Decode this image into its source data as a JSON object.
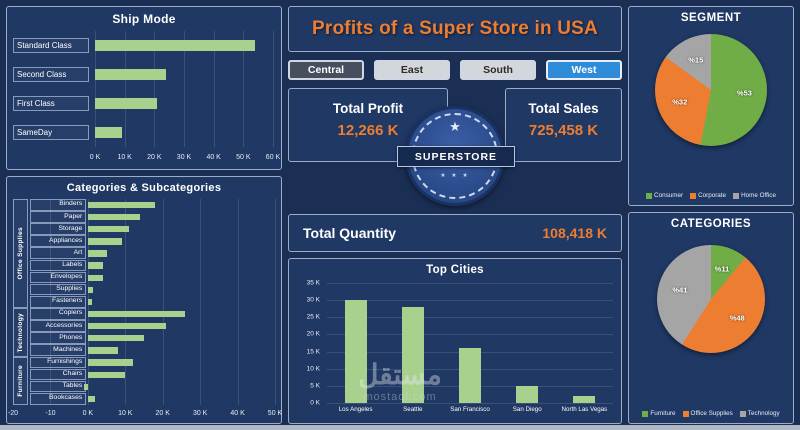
{
  "app": {
    "title": "Profits of a Super Store in USA",
    "watermark_main": "مستقل",
    "watermark_sub": "mostaql.com"
  },
  "colors": {
    "background": "#1B2F55",
    "panel": "#1F3864",
    "panel_border": "#9DACC9",
    "accent_orange": "#ED7D31",
    "bar_green": "#A9D18E",
    "pie_green": "#70AD47",
    "pie_orange": "#ED7D31",
    "pie_gray": "#A5A5A5",
    "selected_blue": "#2D8BD8"
  },
  "region_buttons": [
    {
      "label": "Central",
      "bg": "#474F5E",
      "fg": "#FFFFFF",
      "selected": false
    },
    {
      "label": "East",
      "bg": "#D3D6DB",
      "fg": "#2B2B2B",
      "selected": false
    },
    {
      "label": "South",
      "bg": "#D3D6DB",
      "fg": "#2B2B2B",
      "selected": false
    },
    {
      "label": "West",
      "bg": "#2D8BD8",
      "fg": "#FFFFFF",
      "selected": true
    }
  ],
  "kpis": {
    "profit": {
      "label": "Total Profit",
      "value": "12,266 K"
    },
    "sales": {
      "label": "Total Sales",
      "value": "725,458 K"
    },
    "quantity": {
      "label": "Total Quantity",
      "value": "108,418 K"
    }
  },
  "logo": {
    "text": "SUPERSTORE"
  },
  "chart_data": [
    {
      "id": "ship-mode",
      "type": "bar",
      "orientation": "horizontal",
      "title": "Ship Mode",
      "categories": [
        "Standard Class",
        "Second Class",
        "First Class",
        "SameDay"
      ],
      "values_k": [
        54,
        24,
        21,
        9
      ],
      "xlim": [
        0,
        60
      ],
      "x_ticks": [
        "0 K",
        "10 K",
        "20 K",
        "30 K",
        "40 K",
        "50 K",
        "60 K"
      ],
      "grid": true,
      "unit": "K"
    },
    {
      "id": "categories-subcategories",
      "type": "bar",
      "orientation": "horizontal",
      "title": "Categories &  Subcategories",
      "xlim": [
        -20,
        50
      ],
      "tick_values": [
        -20,
        -10,
        0,
        10,
        20,
        30,
        40,
        50
      ],
      "x_ticks": [
        "-20",
        "-10",
        "0 K",
        "10 K",
        "20 K",
        "30 K",
        "40 K",
        "50 K"
      ],
      "unit": "K",
      "groups": [
        {
          "name": "Office Supplies",
          "items": [
            {
              "label": "Binders",
              "value": 18
            },
            {
              "label": "Paper",
              "value": 14
            },
            {
              "label": "Storage",
              "value": 11
            },
            {
              "label": "Appliances",
              "value": 9
            },
            {
              "label": "Art",
              "value": 5
            },
            {
              "label": "Labels",
              "value": 4
            },
            {
              "label": "Envelopes",
              "value": 4
            },
            {
              "label": "Supplies",
              "value": 1.5
            },
            {
              "label": "Fasteners",
              "value": 1
            }
          ]
        },
        {
          "name": "Technology",
          "items": [
            {
              "label": "Copiers",
              "value": 26
            },
            {
              "label": "Accessories",
              "value": 21
            },
            {
              "label": "Phones",
              "value": 15
            },
            {
              "label": "Machines",
              "value": 8
            }
          ]
        },
        {
          "name": "Furniture",
          "items": [
            {
              "label": "Furnishings",
              "value": 12
            },
            {
              "label": "Chairs",
              "value": 10
            },
            {
              "label": "Tables",
              "value": -1
            },
            {
              "label": "Bookcases",
              "value": 2
            }
          ]
        }
      ]
    },
    {
      "id": "top-cities",
      "type": "bar",
      "orientation": "vertical",
      "title": "Top Cities",
      "categories": [
        "Los Angeles",
        "Seattle",
        "San Francisco",
        "San Diego",
        "North Las Vegas"
      ],
      "values_k": [
        30,
        28,
        16,
        5,
        2
      ],
      "ylim": [
        0,
        35
      ],
      "y_ticks": [
        "0 K",
        "5 K",
        "10 K",
        "15 K",
        "20 K",
        "25 K",
        "30 K",
        "35 K"
      ],
      "grid": true,
      "unit": "K"
    },
    {
      "id": "segment",
      "type": "pie",
      "title": "SEGMENT",
      "legend_position": "bottom",
      "slices": [
        {
          "label": "Consumer",
          "pct": 53,
          "color": "#70AD47",
          "data_label": "%53"
        },
        {
          "label": "Corporate",
          "pct": 32,
          "color": "#ED7D31",
          "data_label": "%32"
        },
        {
          "label": "Home Office",
          "pct": 15,
          "color": "#A5A5A5",
          "data_label": "%15"
        }
      ]
    },
    {
      "id": "categories-pie",
      "type": "pie",
      "title": "CATEGORIES",
      "legend_position": "bottom",
      "slices": [
        {
          "label": "Furniture",
          "pct": 11,
          "color": "#70AD47",
          "data_label": "%11"
        },
        {
          "label": "Office Supplies",
          "pct": 48,
          "color": "#ED7D31",
          "data_label": "%48"
        },
        {
          "label": "Technology",
          "pct": 41,
          "color": "#A5A5A5",
          "data_label": "%41"
        }
      ]
    }
  ]
}
